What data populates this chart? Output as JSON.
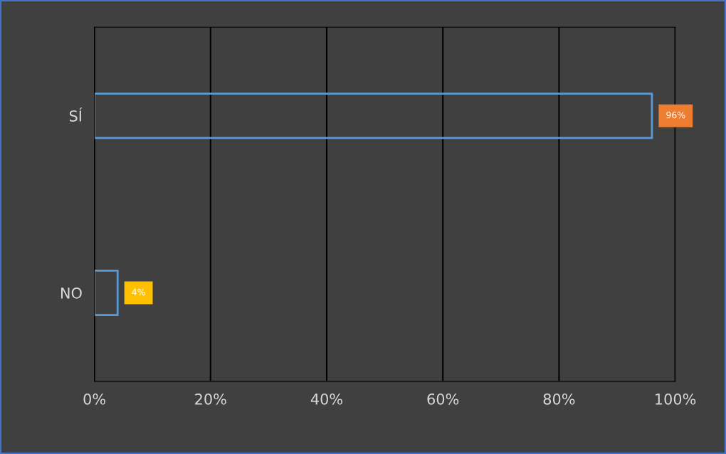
{
  "chart_data": {
    "type": "bar",
    "orientation": "horizontal",
    "categories": [
      "SÍ",
      "NO"
    ],
    "values": [
      96,
      4
    ],
    "value_labels": [
      "96%",
      "4%"
    ],
    "color": "#5b9bd5",
    "xlim": [
      0,
      100
    ],
    "xticks": [
      {
        "value": 0,
        "label": "0%"
      },
      {
        "value": 20,
        "label": "20%"
      },
      {
        "value": 40,
        "label": "40%"
      },
      {
        "value": 60,
        "label": "60%"
      },
      {
        "value": 80,
        "label": "80%"
      },
      {
        "value": 100,
        "label": "100%"
      }
    ],
    "grid": "x"
  }
}
